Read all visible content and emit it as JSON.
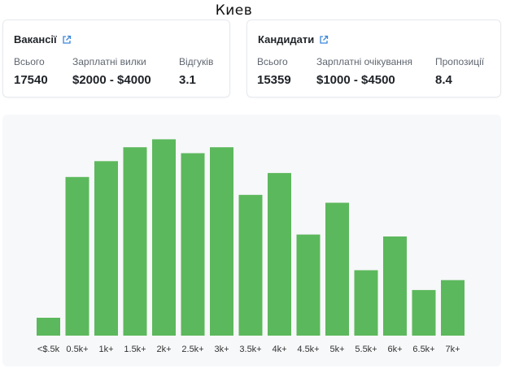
{
  "page": {
    "city": "Киев"
  },
  "vacancies": {
    "title": "Вакансії",
    "stats": [
      {
        "label": "Всього",
        "value": "17540"
      },
      {
        "label": "Зарплатні вилки",
        "value": "$2000 - $4000"
      },
      {
        "label": "Відгуків",
        "value": "3.1"
      }
    ]
  },
  "candidates": {
    "title": "Кандидати",
    "stats": [
      {
        "label": "Всього",
        "value": "15359"
      },
      {
        "label": "Зарплатні очікування",
        "value": "$1000 - $4500"
      },
      {
        "label": "Пропозиції",
        "value": "8.4"
      }
    ]
  },
  "icons": {
    "external_link": "external-link-icon"
  },
  "colors": {
    "bar": "#5cb85c",
    "accent_icon": "#3a86d9",
    "panel_bg": "#f7f8fa"
  },
  "chart_data": {
    "type": "bar",
    "title": "",
    "xlabel": "",
    "ylabel": "",
    "categories": [
      "<$.5k",
      "0.5k+",
      "1k+",
      "1.5k+",
      "2k+",
      "2.5k+",
      "3k+",
      "3.5k+",
      "4k+",
      "4.5k+",
      "5k+",
      "5.5k+",
      "6k+",
      "6.5k+",
      "7k+"
    ],
    "values": [
      9,
      80,
      88,
      95,
      99,
      92,
      95,
      71,
      82,
      51,
      67,
      33,
      50,
      23,
      28
    ],
    "ylim": [
      0,
      100
    ],
    "grid": false,
    "legend": "none"
  }
}
